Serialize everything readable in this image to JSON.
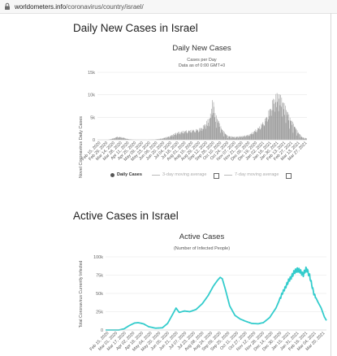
{
  "browser": {
    "url_domain": "worldometers.info",
    "url_path": "/coronavirus/country/israel/"
  },
  "sections": {
    "daily": {
      "heading": "Daily New Cases in Israel"
    },
    "active": {
      "heading": "Active Cases in Israel"
    }
  },
  "daily_chart": {
    "title": "Daily New Cases",
    "subtitle1": "Cases per Day",
    "subtitle2": "Data as of 0:00 GMT+0",
    "ylabel": "Novel Coronavirus Daily Cases",
    "legend": {
      "daily": "Daily Cases",
      "avg3": "3-day moving average",
      "avg7": "7-day moving average"
    }
  },
  "active_chart": {
    "title": "Active Cases",
    "subtitle": "(Number of Infected People)",
    "ylabel": "Total Coronavirus Currently Infected"
  },
  "colors": {
    "bars": "#8a8a8a",
    "line": "#33cccc",
    "grid": "#e6e6e6"
  },
  "chart_data": [
    {
      "type": "bar",
      "title": "Daily New Cases",
      "ylabel": "Novel Coronavirus Daily Cases",
      "ylim": [
        0,
        15000
      ],
      "yticks": [
        "0",
        "5k",
        "10k",
        "15k"
      ],
      "xtick_labels": [
        "Feb 15, 2020",
        "Feb 29, 2020",
        "Mar 14, 2020",
        "Mar 28, 2020",
        "Apr 11, 2020",
        "Apr 25, 2020",
        "May 09, 2020",
        "May 23, 2020",
        "Jun 06, 2020",
        "Jun 20, 2020",
        "Jul 04, 2020",
        "Jul 18, 2020",
        "Aug 01, 2020",
        "Aug 15, 2020",
        "Aug 29, 2020",
        "Sep 12, 2020",
        "Sep 26, 2020",
        "Oct 10, 2020",
        "Oct 24, 2020",
        "Nov 07, 2020",
        "Nov 21, 2020",
        "Dec 05, 2020",
        "Dec 19, 2020",
        "Jan 02, 2021",
        "Jan 16, 2021",
        "Jan 30, 2021",
        "Feb 13, 2021",
        "Feb 27, 2021",
        "Mar 13, 2021",
        "Mar 27, 2021"
      ],
      "series": [
        {
          "name": "Daily Cases",
          "anchors": [
            [
              0,
              0
            ],
            [
              20,
              0
            ],
            [
              30,
              300
            ],
            [
              38,
              650
            ],
            [
              48,
              500
            ],
            [
              58,
              180
            ],
            [
              70,
              20
            ],
            [
              95,
              10
            ],
            [
              110,
              60
            ],
            [
              125,
              300
            ],
            [
              140,
              800
            ],
            [
              150,
              1400
            ],
            [
              165,
              1800
            ],
            [
              180,
              2000
            ],
            [
              195,
              2200
            ],
            [
              205,
              3000
            ],
            [
              215,
              4500
            ],
            [
              220,
              6500
            ],
            [
              222,
              9500
            ],
            [
              225,
              5500
            ],
            [
              232,
              4000
            ],
            [
              240,
              2000
            ],
            [
              250,
              800
            ],
            [
              262,
              600
            ],
            [
              275,
              700
            ],
            [
              290,
              1000
            ],
            [
              300,
              1700
            ],
            [
              312,
              2800
            ],
            [
              322,
              4200
            ],
            [
              330,
              6000
            ],
            [
              336,
              7800
            ],
            [
              342,
              9000
            ],
            [
              348,
              9500
            ],
            [
              354,
              8500
            ],
            [
              362,
              6500
            ],
            [
              370,
              4500
            ],
            [
              378,
              3000
            ],
            [
              386,
              1500
            ],
            [
              394,
              500
            ],
            [
              402,
              300
            ]
          ]
        }
      ]
    },
    {
      "type": "line",
      "title": "Active Cases",
      "ylabel": "Total Coronavirus Currently Infected",
      "ylim": [
        0,
        100000
      ],
      "yticks": [
        "0",
        "25k",
        "50k",
        "75k",
        "100k"
      ],
      "xtick_labels": [
        "Feb 15, 2020",
        "Mar 01, 2020",
        "Mar 17, 2020",
        "Apr 02, 2020",
        "Apr 18, 2020",
        "May 04, 2020",
        "May 20, 2020",
        "Jun 05, 2020",
        "Jun 21, 2020",
        "Jul 07, 2020",
        "Jul 23, 2020",
        "Aug 08, 2020",
        "Aug 24, 2020",
        "Sep 09, 2020",
        "Sep 25, 2020",
        "Oct 11, 2020",
        "Oct 27, 2020",
        "Nov 12, 2020",
        "Nov 28, 2020",
        "Dec 14, 2020",
        "Dec 30, 2020",
        "Jan 15, 2021",
        "Jan 31, 2021",
        "Feb 16, 2021",
        "Mar 04, 2021",
        "Mar 20, 2021"
      ],
      "series": [
        {
          "name": "Active Cases",
          "anchors": [
            [
              0,
              0
            ],
            [
              25,
              0
            ],
            [
              35,
              1500
            ],
            [
              45,
              6000
            ],
            [
              55,
              9500
            ],
            [
              62,
              10000
            ],
            [
              72,
              8500
            ],
            [
              82,
              4500
            ],
            [
              95,
              2500
            ],
            [
              108,
              3000
            ],
            [
              118,
              9000
            ],
            [
              128,
              22000
            ],
            [
              134,
              30000
            ],
            [
              140,
              24000
            ],
            [
              150,
              26000
            ],
            [
              160,
              25000
            ],
            [
              172,
              28000
            ],
            [
              184,
              36000
            ],
            [
              195,
              47000
            ],
            [
              205,
              60000
            ],
            [
              213,
              68000
            ],
            [
              218,
              72000
            ],
            [
              222,
              70000
            ],
            [
              228,
              55000
            ],
            [
              236,
              33000
            ],
            [
              246,
              20000
            ],
            [
              256,
              15000
            ],
            [
              266,
              12000
            ],
            [
              278,
              9000
            ],
            [
              290,
              8500
            ],
            [
              300,
              10000
            ],
            [
              312,
              17000
            ],
            [
              324,
              30000
            ],
            [
              336,
              50000
            ],
            [
              348,
              67000
            ],
            [
              358,
              78000
            ],
            [
              364,
              83000
            ],
            [
              370,
              80000
            ],
            [
              376,
              76000
            ],
            [
              382,
              84000
            ],
            [
              388,
              74000
            ],
            [
              396,
              50000
            ],
            [
              404,
              38000
            ],
            [
              410,
              30000
            ],
            [
              416,
              18000
            ],
            [
              420,
              13000
            ]
          ]
        }
      ]
    }
  ]
}
